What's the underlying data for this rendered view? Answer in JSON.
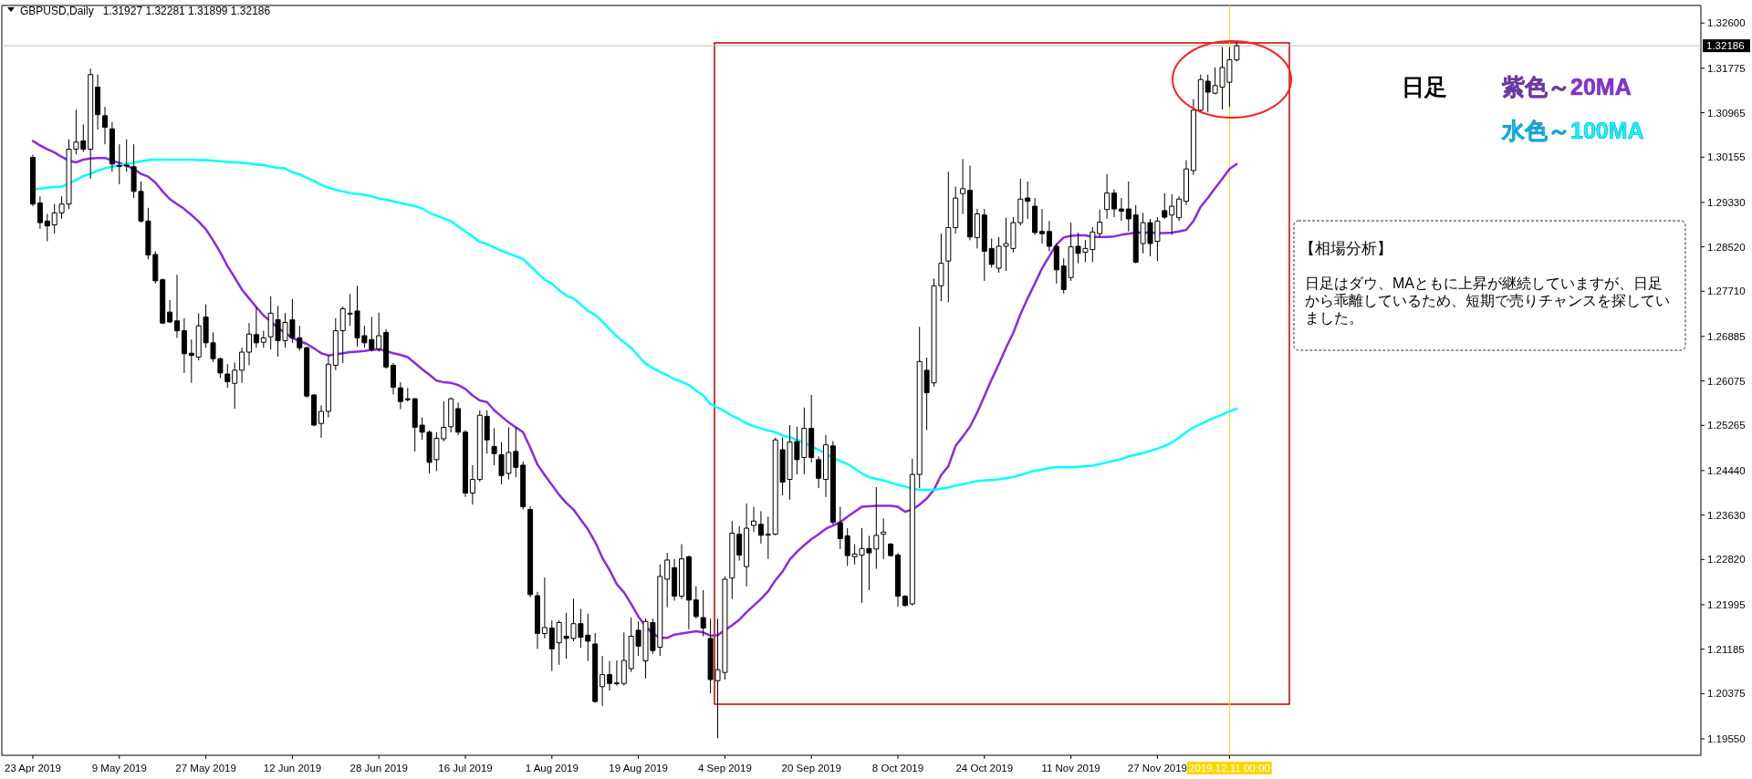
{
  "chart_data": {
    "type": "candlestick",
    "title": "GBPUSD,Daily",
    "subtitle": "1.31927 1.32281 1.31899 1.32186",
    "categories": [
      "23 Apr 2019",
      null,
      null,
      null,
      null,
      null,
      null,
      null,
      null,
      null,
      null,
      null,
      "9 May 2019",
      null,
      null,
      null,
      null,
      null,
      null,
      null,
      null,
      null,
      null,
      null,
      "27 May 2019",
      null,
      null,
      null,
      null,
      null,
      null,
      null,
      null,
      null,
      null,
      null,
      "12 Jun 2019",
      null,
      null,
      null,
      null,
      null,
      null,
      null,
      null,
      null,
      null,
      null,
      "28 Jun 2019",
      null,
      null,
      null,
      null,
      null,
      null,
      null,
      null,
      null,
      null,
      null,
      "16 Jul 2019",
      null,
      null,
      null,
      null,
      null,
      null,
      null,
      null,
      null,
      null,
      null,
      "1 Aug 2019",
      null,
      null,
      null,
      null,
      null,
      null,
      null,
      null,
      null,
      null,
      null,
      "19 Aug 2019",
      null,
      null,
      null,
      null,
      null,
      null,
      null,
      null,
      null,
      null,
      null,
      "4 Sep 2019",
      null,
      null,
      null,
      null,
      null,
      null,
      null,
      null,
      null,
      null,
      null,
      "20 Sep 2019",
      null,
      null,
      null,
      null,
      null,
      null,
      null,
      null,
      null,
      null,
      null,
      "8 Oct 2019",
      null,
      null,
      null,
      null,
      null,
      null,
      null,
      null,
      null,
      null,
      null,
      "24 Oct 2019",
      null,
      null,
      null,
      null,
      null,
      null,
      null,
      null,
      null,
      null,
      null,
      "11 Nov 2019",
      null,
      null,
      null,
      null,
      null,
      null,
      null,
      null,
      null,
      null,
      null,
      "27 Nov 2019",
      null,
      null,
      null,
      null,
      null,
      null,
      null,
      null,
      null,
      "2019.12.11 00:00",
      null
    ],
    "ohlc": [
      [
        1.3015,
        1.302,
        1.2926,
        1.293
      ],
      [
        1.2932,
        1.2944,
        1.2885,
        1.2896
      ],
      [
        1.2899,
        1.2912,
        1.2862,
        1.289
      ],
      [
        1.2892,
        1.293,
        1.2876,
        1.2914
      ],
      [
        1.2914,
        1.2944,
        1.2903,
        1.293
      ],
      [
        1.293,
        1.3048,
        1.2921,
        1.303
      ],
      [
        1.303,
        1.3102,
        1.3021,
        1.3043
      ],
      [
        1.3045,
        1.3075,
        1.3025,
        1.303
      ],
      [
        1.303,
        1.3177,
        1.2976,
        1.3166
      ],
      [
        1.3143,
        1.3166,
        1.3066,
        1.3093
      ],
      [
        1.3091,
        1.3107,
        1.3039,
        1.307
      ],
      [
        1.3067,
        1.3079,
        1.2989,
        1.3003
      ],
      [
        1.3,
        1.3039,
        1.2966,
        1.3
      ],
      [
        1.3001,
        1.3048,
        1.2989,
        1.3
      ],
      [
        1.2998,
        1.3039,
        1.2941,
        1.2953
      ],
      [
        1.2953,
        1.2971,
        1.2896,
        1.2899
      ],
      [
        1.2899,
        1.2923,
        1.2829,
        1.2837
      ],
      [
        1.2838,
        1.2844,
        1.2785,
        1.279
      ],
      [
        1.2792,
        1.2794,
        1.2711,
        1.2713
      ],
      [
        1.2733,
        1.2755,
        1.2713,
        1.2715
      ],
      [
        1.2717,
        1.2801,
        1.2686,
        1.2699
      ],
      [
        1.2699,
        1.2722,
        1.2622,
        1.2657
      ],
      [
        1.2658,
        1.2683,
        1.2604,
        1.2654
      ],
      [
        1.2651,
        1.2731,
        1.2645,
        1.2708
      ],
      [
        1.2724,
        1.2747,
        1.2668,
        1.2677
      ],
      [
        1.2677,
        1.2696,
        1.2642,
        1.2648
      ],
      [
        1.2648,
        1.265,
        1.2613,
        1.2622
      ],
      [
        1.262,
        1.2638,
        1.2595,
        1.2606
      ],
      [
        1.2603,
        1.2641,
        1.2557,
        1.2627
      ],
      [
        1.2627,
        1.2668,
        1.2604,
        1.266
      ],
      [
        1.266,
        1.2713,
        1.2636,
        1.2693
      ],
      [
        1.2692,
        1.2742,
        1.2668,
        1.2677
      ],
      [
        1.2678,
        1.2699,
        1.2668,
        1.2686
      ],
      [
        1.2688,
        1.2762,
        1.2665,
        1.2731
      ],
      [
        1.2719,
        1.2744,
        1.2652,
        1.2681
      ],
      [
        1.2681,
        1.2731,
        1.2668,
        1.2714
      ],
      [
        1.2719,
        1.2757,
        1.2677,
        1.2686
      ],
      [
        1.2686,
        1.2708,
        1.2663,
        1.2668
      ],
      [
        1.2668,
        1.267,
        1.2577,
        1.258
      ],
      [
        1.2582,
        1.2583,
        1.2525,
        1.2527
      ],
      [
        1.253,
        1.2563,
        1.2504,
        1.2552
      ],
      [
        1.2552,
        1.2654,
        1.2541,
        1.2638
      ],
      [
        1.2636,
        1.2722,
        1.2627,
        1.2699
      ],
      [
        1.2699,
        1.2743,
        1.264,
        1.2739
      ],
      [
        1.2731,
        1.2766,
        1.2708,
        1.2731
      ],
      [
        1.2735,
        1.2781,
        1.267,
        1.2686
      ],
      [
        1.269,
        1.2708,
        1.2668,
        1.2677
      ],
      [
        1.2683,
        1.2724,
        1.2661,
        1.2665
      ],
      [
        1.2666,
        1.2732,
        1.2661,
        1.269
      ],
      [
        1.2696,
        1.2702,
        1.263,
        1.2633
      ],
      [
        1.2636,
        1.264,
        1.2583,
        1.2596
      ],
      [
        1.2595,
        1.2605,
        1.2556,
        1.257
      ],
      [
        1.2575,
        1.2595,
        1.257,
        1.2574
      ],
      [
        1.2575,
        1.2576,
        1.2479,
        1.2523
      ],
      [
        1.2527,
        1.2541,
        1.25,
        1.2514
      ],
      [
        1.2514,
        1.2517,
        1.2439,
        1.2459
      ],
      [
        1.2464,
        1.2514,
        1.2443,
        1.2503
      ],
      [
        1.2502,
        1.257,
        1.2497,
        1.2523
      ],
      [
        1.2524,
        1.2577,
        1.2514,
        1.2575
      ],
      [
        1.2557,
        1.2568,
        1.2509,
        1.2514
      ],
      [
        1.2514,
        1.2518,
        1.2396,
        1.2403
      ],
      [
        1.2403,
        1.2454,
        1.2382,
        1.2428
      ],
      [
        1.2428,
        1.2554,
        1.2424,
        1.2545
      ],
      [
        1.2543,
        1.2554,
        1.2475,
        1.25
      ],
      [
        1.2488,
        1.2521,
        1.2454,
        1.2475
      ],
      [
        1.2473,
        1.2496,
        1.2419,
        1.2435
      ],
      [
        1.2439,
        1.2523,
        1.2428,
        1.2477
      ],
      [
        1.2479,
        1.2523,
        1.2432,
        1.245
      ],
      [
        1.2454,
        1.2461,
        1.2373,
        1.2378
      ],
      [
        1.2373,
        1.2379,
        1.2213,
        1.2218
      ],
      [
        1.2216,
        1.2223,
        1.2119,
        1.2147
      ],
      [
        1.2147,
        1.2249,
        1.2138,
        1.2158
      ],
      [
        1.2157,
        1.2171,
        1.2079,
        1.2119
      ],
      [
        1.213,
        1.2171,
        1.209,
        1.2167
      ],
      [
        1.2142,
        1.2185,
        1.2101,
        1.2138
      ],
      [
        1.2138,
        1.221,
        1.2133,
        1.2165
      ],
      [
        1.2165,
        1.2192,
        1.2121,
        1.214
      ],
      [
        1.2144,
        1.2183,
        1.2097,
        1.2133
      ],
      [
        1.2128,
        1.2148,
        1.2021,
        1.2023
      ],
      [
        1.205,
        1.2106,
        1.2015,
        1.2072
      ],
      [
        1.2072,
        1.2097,
        1.2043,
        1.2056
      ],
      [
        1.2056,
        1.2098,
        1.2052,
        1.2057
      ],
      [
        1.2056,
        1.2149,
        1.2052,
        1.2098
      ],
      [
        1.2083,
        1.2176,
        1.2077,
        1.2142
      ],
      [
        1.2153,
        1.2169,
        1.2106,
        1.2124
      ],
      [
        1.2097,
        1.2174,
        1.2065,
        1.2169
      ],
      [
        1.2167,
        1.2174,
        1.211,
        1.2116
      ],
      [
        1.2122,
        1.2273,
        1.2106,
        1.2251
      ],
      [
        1.2246,
        1.2294,
        1.2195,
        1.2281
      ],
      [
        1.2267,
        1.2283,
        1.2207,
        1.2215
      ],
      [
        1.2215,
        1.231,
        1.221,
        1.2283
      ],
      [
        1.2287,
        1.2289,
        1.2155,
        1.2208
      ],
      [
        1.2208,
        1.2233,
        1.2174,
        1.2178
      ],
      [
        1.2176,
        1.2226,
        1.2142,
        1.2157
      ],
      [
        1.2138,
        1.2174,
        1.2038,
        1.2063
      ],
      [
        1.2061,
        1.2174,
        1.1956,
        1.2081
      ],
      [
        1.2076,
        1.2251,
        1.2063,
        1.2246
      ],
      [
        1.2248,
        1.2352,
        1.221,
        1.233
      ],
      [
        1.2328,
        1.2343,
        1.228,
        1.229
      ],
      [
        1.2269,
        1.2384,
        1.2233,
        1.2339
      ],
      [
        1.2344,
        1.2378,
        1.2332,
        1.2352
      ],
      [
        1.2346,
        1.237,
        1.2311,
        1.2326
      ],
      [
        1.2328,
        1.236,
        1.2283,
        1.2328
      ],
      [
        1.2328,
        1.2504,
        1.2326,
        1.25
      ],
      [
        1.2482,
        1.2504,
        1.2399,
        1.2423
      ],
      [
        1.2428,
        1.2527,
        1.2391,
        1.2496
      ],
      [
        1.2497,
        1.2524,
        1.2437,
        1.2464
      ],
      [
        1.2468,
        1.2559,
        1.2437,
        1.2521
      ],
      [
        1.2521,
        1.2582,
        1.2459,
        1.2468
      ],
      [
        1.2464,
        1.247,
        1.2412,
        1.243
      ],
      [
        1.2428,
        1.2509,
        1.2396,
        1.2491
      ],
      [
        1.2489,
        1.2498,
        1.2346,
        1.235
      ],
      [
        1.2349,
        1.2378,
        1.2301,
        1.232
      ],
      [
        1.2325,
        1.2339,
        1.227,
        1.2289
      ],
      [
        1.2287,
        1.231,
        1.2273,
        1.2292
      ],
      [
        1.229,
        1.2339,
        1.2203,
        1.2302
      ],
      [
        1.2302,
        1.2325,
        1.2226,
        1.2294
      ],
      [
        1.2301,
        1.2414,
        1.2265,
        1.2326
      ],
      [
        1.2328,
        1.2357,
        1.2283,
        1.2332
      ],
      [
        1.231,
        1.2312,
        1.2287,
        1.2289
      ],
      [
        1.229,
        1.2294,
        1.2196,
        1.2215
      ],
      [
        1.2215,
        1.2217,
        1.2196,
        1.2198
      ],
      [
        1.2201,
        1.2466,
        1.2198,
        1.2437
      ],
      [
        1.2437,
        1.2706,
        1.2412,
        1.2643
      ],
      [
        1.2627,
        1.265,
        1.2518,
        1.2586
      ],
      [
        1.2604,
        1.2794,
        1.2597,
        1.2781
      ],
      [
        1.2781,
        1.2876,
        1.2753,
        1.2822
      ],
      [
        1.2826,
        1.2989,
        1.2751,
        1.2887
      ],
      [
        1.2887,
        1.2962,
        1.2876,
        1.2941
      ],
      [
        1.2949,
        1.3012,
        1.2912,
        1.2958
      ],
      [
        1.2955,
        1.3,
        1.2864,
        1.287
      ],
      [
        1.2869,
        1.2921,
        1.2849,
        1.2912
      ],
      [
        1.291,
        1.2921,
        1.279,
        1.2844
      ],
      [
        1.2849,
        1.2867,
        1.2814,
        1.282
      ],
      [
        1.2813,
        1.287,
        1.2805,
        1.2853
      ],
      [
        1.2853,
        1.2905,
        1.2808,
        1.2858
      ],
      [
        1.2849,
        1.2906,
        1.2842,
        1.2896
      ],
      [
        1.2896,
        1.2976,
        1.2891,
        1.2939
      ],
      [
        1.2941,
        1.2971,
        1.2903,
        1.2935
      ],
      [
        1.2926,
        1.2941,
        1.2874,
        1.2878
      ],
      [
        1.288,
        1.2921,
        1.2858,
        1.2876
      ],
      [
        1.288,
        1.2899,
        1.2844,
        1.2853
      ],
      [
        1.2853,
        1.2858,
        1.2785,
        1.281
      ],
      [
        1.2817,
        1.2831,
        1.2767,
        1.2774
      ],
      [
        1.2796,
        1.2896,
        1.279,
        1.2852
      ],
      [
        1.2853,
        1.2878,
        1.2822,
        1.284
      ],
      [
        1.2842,
        1.2864,
        1.2824,
        1.2849
      ],
      [
        1.2847,
        1.2888,
        1.2824,
        1.2879
      ],
      [
        1.2876,
        1.292,
        1.2869,
        1.2897
      ],
      [
        1.292,
        1.2985,
        1.2903,
        1.295
      ],
      [
        1.295,
        1.2957,
        1.2906,
        1.2921
      ],
      [
        1.2921,
        1.2941,
        1.2899,
        1.2917
      ],
      [
        1.2921,
        1.2971,
        1.288,
        1.2903
      ],
      [
        1.291,
        1.2928,
        1.2822,
        1.2824
      ],
      [
        1.2858,
        1.2914,
        1.284,
        1.2896
      ],
      [
        1.2896,
        1.2903,
        1.2835,
        1.2858
      ],
      [
        1.2862,
        1.2906,
        1.2826,
        1.2899
      ],
      [
        1.2918,
        1.295,
        1.2903,
        1.2906
      ],
      [
        1.291,
        1.2948,
        1.2874,
        1.2926
      ],
      [
        1.2905,
        1.2944,
        1.2899,
        1.2939
      ],
      [
        1.2935,
        1.301,
        1.2928,
        1.2994
      ],
      [
        1.2991,
        1.3121,
        1.2983,
        1.3101
      ],
      [
        1.3101,
        1.3166,
        1.3098,
        1.3157
      ],
      [
        1.3154,
        1.3166,
        1.3098,
        1.3134
      ],
      [
        1.3132,
        1.3179,
        1.313,
        1.3146
      ],
      [
        1.3143,
        1.3216,
        1.3102,
        1.3179
      ],
      [
        1.3152,
        1.3216,
        1.3107,
        1.3193
      ],
      [
        1.31927,
        1.32281,
        1.31899,
        1.32186
      ]
    ],
    "series": [
      {
        "name": "紫色～20MA",
        "type": "line",
        "color": "#8a2be2",
        "values": [
          1.3045,
          1.3037,
          1.303,
          1.3024,
          1.3016,
          1.3009,
          1.3006,
          1.3011,
          1.3013,
          1.3014,
          1.3014,
          1.3009,
          1.3005,
          1.3,
          1.2994,
          1.2985,
          1.298,
          1.2969,
          1.2953,
          1.2939,
          1.293,
          1.2921,
          1.291,
          1.2898,
          1.2884,
          1.2864,
          1.2842,
          1.2817,
          1.2796,
          1.2774,
          1.2758,
          1.2742,
          1.2727,
          1.2716,
          1.2704,
          1.2695,
          1.2686,
          1.268,
          1.2675,
          1.2667,
          1.2658,
          1.2654,
          1.2656,
          1.2658,
          1.266,
          1.2661,
          1.2662,
          1.2664,
          1.2665,
          1.2662,
          1.2658,
          1.2655,
          1.2651,
          1.264,
          1.2629,
          1.2619,
          1.2608,
          1.2605,
          1.2604,
          1.26,
          1.2593,
          1.2581,
          1.2572,
          1.2569,
          1.2554,
          1.2543,
          1.2532,
          1.2523,
          1.2514,
          1.2486,
          1.2455,
          1.2436,
          1.2418,
          1.24,
          1.2385,
          1.2373,
          1.2355,
          1.2337,
          1.2314,
          1.2285,
          1.2263,
          1.2237,
          1.2222,
          1.2201,
          1.2178,
          1.216,
          1.2147,
          1.2139,
          1.2139,
          1.2145,
          1.2147,
          1.2149,
          1.2151,
          1.2149,
          1.2143,
          1.2144,
          1.2153,
          1.2162,
          1.2172,
          1.2186,
          1.2198,
          1.221,
          1.2224,
          1.2244,
          1.226,
          1.2282,
          1.2296,
          1.2308,
          1.2319,
          1.2328,
          1.2338,
          1.2344,
          1.235,
          1.236,
          1.2369,
          1.2378,
          1.2379,
          1.238,
          1.238,
          1.238,
          1.2378,
          1.2369,
          1.2373,
          1.2382,
          1.2393,
          1.2409,
          1.2436,
          1.2452,
          1.2489,
          1.2506,
          1.2524,
          1.255,
          1.258,
          1.261,
          1.2638,
          1.2668,
          1.2695,
          1.2729,
          1.2758,
          1.2785,
          1.2813,
          1.2835,
          1.2856,
          1.2869,
          1.2872,
          1.2873,
          1.2873,
          1.287,
          1.287,
          1.287,
          1.2871,
          1.2874,
          1.2876,
          1.2878,
          1.2878,
          1.2878,
          1.2877,
          1.2877,
          1.2878,
          1.288,
          1.2883,
          1.2899,
          1.2925,
          1.2941,
          1.2959,
          1.2976,
          1.2994,
          1.3003
        ]
      },
      {
        "name": "水色～100MA",
        "type": "line",
        "color": "#00ffff",
        "values": [
          1.2957,
          1.2958,
          1.296,
          1.2961,
          1.2962,
          1.2967,
          1.2974,
          1.2981,
          1.2985,
          1.2991,
          1.2995,
          1.2998,
          1.3001,
          1.3003,
          1.3005,
          1.3008,
          1.301,
          1.3011,
          1.3011,
          1.3011,
          1.3011,
          1.3011,
          1.3011,
          1.301,
          1.301,
          1.3009,
          1.3008,
          1.3007,
          1.3006,
          1.3005,
          1.3004,
          1.3002,
          1.3001,
          1.2998,
          1.2996,
          1.2995,
          1.2988,
          1.2984,
          1.2978,
          1.2972,
          1.2965,
          1.296,
          1.2956,
          1.2953,
          1.295,
          1.2948,
          1.2947,
          1.2944,
          1.294,
          1.2938,
          1.2935,
          1.2932,
          1.2929,
          1.2926,
          1.2922,
          1.2914,
          1.2909,
          1.2904,
          1.2899,
          1.2889,
          1.288,
          1.2871,
          1.2861,
          1.2857,
          1.2851,
          1.2845,
          1.284,
          1.2835,
          1.283,
          1.2817,
          1.2804,
          1.2792,
          1.2785,
          1.2773,
          1.2763,
          1.2758,
          1.2747,
          1.2735,
          1.2728,
          1.2716,
          1.2702,
          1.2689,
          1.2678,
          1.2668,
          1.2653,
          1.2639,
          1.2631,
          1.2624,
          1.2618,
          1.2611,
          1.2606,
          1.26,
          1.259,
          1.2581,
          1.2565,
          1.2559,
          1.2552,
          1.2544,
          1.2538,
          1.253,
          1.2525,
          1.2521,
          1.2517,
          1.2514,
          1.2508,
          1.2505,
          1.25,
          1.2495,
          1.2488,
          1.2482,
          1.2475,
          1.2467,
          1.2461,
          1.2456,
          1.2448,
          1.2439,
          1.2432,
          1.2429,
          1.2426,
          1.2422,
          1.2418,
          1.2415,
          1.2411,
          1.2409,
          1.2409,
          1.2409,
          1.2411,
          1.2413,
          1.2417,
          1.2419,
          1.2422,
          1.2425,
          1.2426,
          1.2427,
          1.2428,
          1.243,
          1.2432,
          1.2436,
          1.244,
          1.2444,
          1.2446,
          1.2449,
          1.245,
          1.245,
          1.245,
          1.2451,
          1.2452,
          1.2453,
          1.2456,
          1.2459,
          1.2462,
          1.2465,
          1.247,
          1.2473,
          1.2476,
          1.248,
          1.2484,
          1.2489,
          1.2495,
          1.2504,
          1.2514,
          1.2523,
          1.2529,
          1.2535,
          1.2541,
          1.2546,
          1.2552,
          1.2557
        ]
      }
    ],
    "ylim": [
      1.1925,
      1.3292
    ],
    "yticks": [
      {
        "value": 1.1955,
        "label": "1.19550"
      },
      {
        "value": 1.20375,
        "label": "1.20375"
      },
      {
        "value": 1.21185,
        "label": "1.21185"
      },
      {
        "value": 1.21995,
        "label": "1.21995"
      },
      {
        "value": 1.2282,
        "label": "1.22820"
      },
      {
        "value": 1.2363,
        "label": "1.23630"
      },
      {
        "value": 1.2444,
        "label": "1.24440"
      },
      {
        "value": 1.25265,
        "label": "1.25265"
      },
      {
        "value": 1.26075,
        "label": "1.26075"
      },
      {
        "value": 1.26885,
        "label": "1.26885"
      },
      {
        "value": 1.2771,
        "label": "1.27710"
      },
      {
        "value": 1.2852,
        "label": "1.28520"
      },
      {
        "value": 1.2933,
        "label": "1.29330"
      },
      {
        "value": 1.30155,
        "label": "1.30155"
      },
      {
        "value": 1.30965,
        "label": "1.30965"
      },
      {
        "value": 1.31775,
        "label": "1.31775"
      },
      {
        "value": 1.326,
        "label": "1.32600"
      }
    ],
    "ref_lines": [
      {
        "axis": "y",
        "value": 1.32186,
        "label": "1.32186",
        "color": "#c0c0c0"
      },
      {
        "axis": "x",
        "value": "2019.12.11 00:00",
        "color": "#ffd700"
      }
    ],
    "legend": "top right",
    "annotations": [
      "日足",
      "【相場分析】",
      "日足はダウ、MAともに上昇が継続していますが、日足から乖離しているため、短期で売りチャンスを探していました。"
    ]
  }
}
